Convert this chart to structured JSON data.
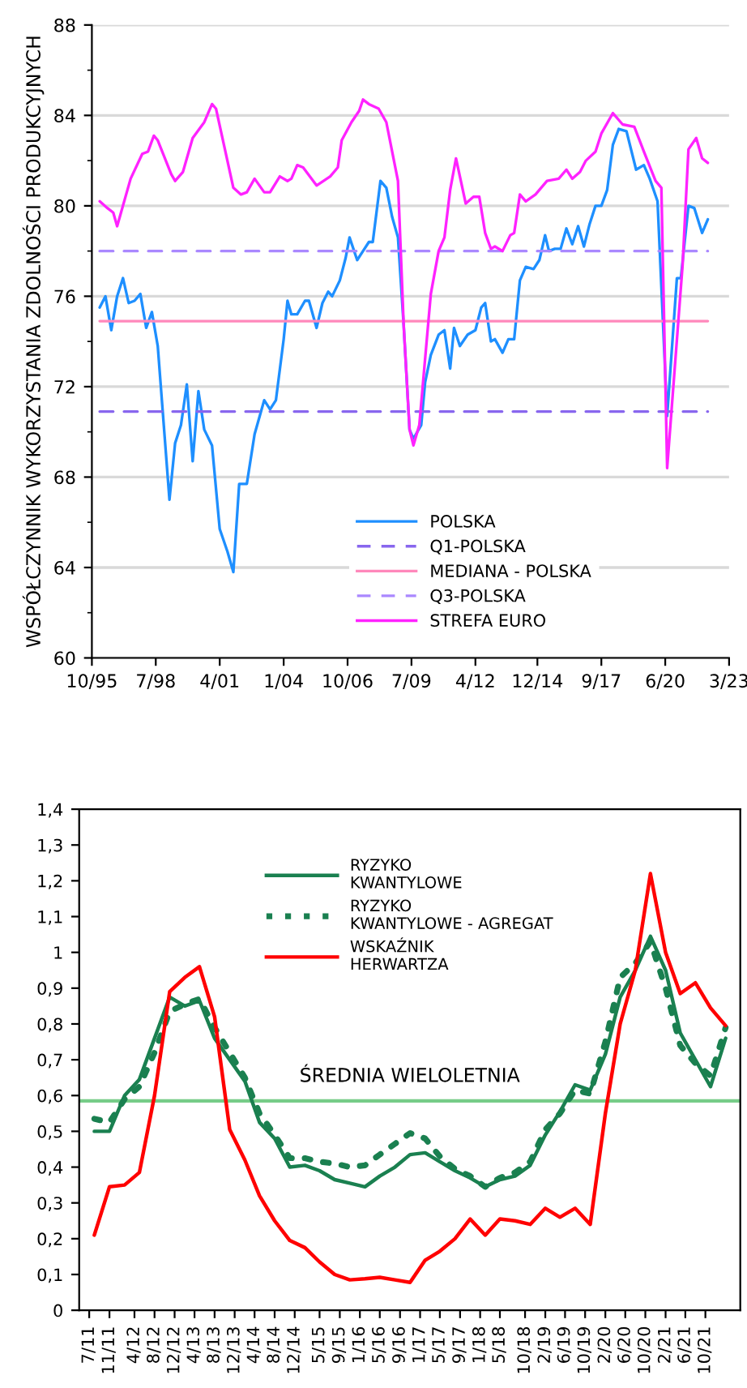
{
  "chart_data": [
    {
      "type": "line",
      "ylabel": "WSPÓŁCZYNNIK WYKORZYSTANIA ZDOLNOŚCI PRODUKCYJNYCH",
      "xlim": [
        "1995-10",
        "2023-03"
      ],
      "ylim": [
        60,
        88
      ],
      "xticks": [
        {
          "value": "1995-10",
          "label": "10/95"
        },
        {
          "value": "1998-07",
          "label": "7/98"
        },
        {
          "value": "2001-04",
          "label": "4/01"
        },
        {
          "value": "2004-01",
          "label": "1/04"
        },
        {
          "value": "2006-10",
          "label": "10/06"
        },
        {
          "value": "2009-07",
          "label": "7/09"
        },
        {
          "value": "2012-04",
          "label": "4/12"
        },
        {
          "value": "2014-12",
          "label": "12/14"
        },
        {
          "value": "2017-09",
          "label": "9/17"
        },
        {
          "value": "2020-06",
          "label": "6/20"
        },
        {
          "value": "2023-03",
          "label": "3/23"
        }
      ],
      "yticks": [
        60,
        {
          "value": 62,
          "label": null
        },
        64,
        {
          "value": 66,
          "label": null
        },
        68,
        {
          "value": 70,
          "label": null
        },
        72,
        {
          "value": 74,
          "label": null
        },
        76,
        {
          "value": 78,
          "label": null
        },
        80,
        {
          "value": 82,
          "label": null
        },
        84,
        {
          "value": 86,
          "label": null
        },
        88
      ],
      "grid": "y",
      "legend": "bottom",
      "marker": "none",
      "series": [
        {
          "name": "POLSKA",
          "color": "#1e8fff",
          "line_style": "solid",
          "x": [
            "1996-02",
            "1996-05",
            "1996-08",
            "1996-11",
            "1997-02",
            "1997-05",
            "1997-08",
            "1997-11",
            "1998-02",
            "1998-05",
            "1998-08",
            "1999-02",
            "1999-05",
            "1999-08",
            "1999-11",
            "2000-02",
            "2000-05",
            "2000-08",
            "2000-12",
            "2001-04",
            "2001-08",
            "2001-11",
            "2002-02",
            "2002-06",
            "2002-10",
            "2003-03",
            "2003-06",
            "2003-09",
            "2004-01",
            "2004-03",
            "2004-05",
            "2004-08",
            "2004-12",
            "2005-02",
            "2005-06",
            "2005-09",
            "2005-12",
            "2006-02",
            "2006-06",
            "2006-09",
            "2006-11",
            "2007-03",
            "2007-06",
            "2007-09",
            "2007-11",
            "2008-03",
            "2008-06",
            "2008-09",
            "2008-12",
            "2009-03",
            "2009-06",
            "2009-08",
            "2009-12",
            "2010-02",
            "2010-05",
            "2010-09",
            "2010-12",
            "2011-03",
            "2011-05",
            "2011-08",
            "2011-12",
            "2012-04",
            "2012-07",
            "2012-09",
            "2012-12",
            "2013-02",
            "2013-06",
            "2013-09",
            "2013-12",
            "2014-03",
            "2014-06",
            "2014-10",
            "2015-01",
            "2015-04",
            "2015-06",
            "2015-09",
            "2015-12",
            "2016-03",
            "2016-06",
            "2016-09",
            "2016-12",
            "2017-03",
            "2017-06",
            "2017-09",
            "2017-12",
            "2018-03",
            "2018-06",
            "2018-10",
            "2019-03",
            "2019-07",
            "2019-10",
            "2020-02",
            "2020-07",
            "2020-12",
            "2021-02",
            "2021-06",
            "2021-09",
            "2022-01",
            "2022-04"
          ],
          "values": [
            75.5,
            76.0,
            74.5,
            76.0,
            76.8,
            75.7,
            75.8,
            76.1,
            74.6,
            75.3,
            73.8,
            67.0,
            69.5,
            70.3,
            72.1,
            68.7,
            71.8,
            70.1,
            69.4,
            65.7,
            64.7,
            63.8,
            67.7,
            67.7,
            69.9,
            71.4,
            71.0,
            71.4,
            74.1,
            75.8,
            75.2,
            75.2,
            75.8,
            75.8,
            74.6,
            75.7,
            76.2,
            76.0,
            76.7,
            77.7,
            78.6,
            77.6,
            78.0,
            78.4,
            78.4,
            81.1,
            80.8,
            79.5,
            78.6,
            74.7,
            70.1,
            69.7,
            70.3,
            72.2,
            73.4,
            74.3,
            74.5,
            72.8,
            74.6,
            73.8,
            74.3,
            74.5,
            75.5,
            75.7,
            74.0,
            74.1,
            73.5,
            74.1,
            74.1,
            76.7,
            77.3,
            77.2,
            77.6,
            78.7,
            78.0,
            78.1,
            78.1,
            79.0,
            78.3,
            79.1,
            78.2,
            79.2,
            80.0,
            80.0,
            80.7,
            82.7,
            83.4,
            83.3,
            81.6,
            81.8,
            81.2,
            80.2,
            70.7,
            76.8,
            76.8,
            80.0,
            79.9,
            78.8,
            79.4
          ]
        },
        {
          "name": "Q1-POLSKA",
          "color": "#8866ee",
          "line_style": "dashed",
          "x": [
            "1996-02",
            "2022-04"
          ],
          "values": [
            70.9,
            70.9
          ]
        },
        {
          "name": "MEDIANA - POLSKA",
          "color": "#ff88bb",
          "line_style": "solid",
          "x": [
            "1996-02",
            "2022-04"
          ],
          "values": [
            74.9,
            74.9
          ]
        },
        {
          "name": "Q3-POLSKA",
          "color": "#aa88ff",
          "line_style": "dashed",
          "x": [
            "1996-02",
            "2022-04"
          ],
          "values": [
            78.0,
            78.0
          ]
        },
        {
          "name": "STREFA EURO",
          "color": "#ff22ff",
          "line_style": "solid",
          "x": [
            "1996-02",
            "1996-06",
            "1996-09",
            "1996-11",
            "1997-06",
            "1997-12",
            "1998-03",
            "1998-06",
            "1998-08",
            "1999-03",
            "1999-05",
            "1999-09",
            "2000-02",
            "2000-08",
            "2000-12",
            "2001-02",
            "2001-11",
            "2002-03",
            "2002-06",
            "2002-10",
            "2003-03",
            "2003-06",
            "2003-11",
            "2004-03",
            "2004-05",
            "2004-08",
            "2004-11",
            "2005-06",
            "2006-01",
            "2006-05",
            "2006-07",
            "2006-12",
            "2007-04",
            "2007-06",
            "2007-09",
            "2008-02",
            "2008-06",
            "2008-12",
            "2009-03",
            "2009-06",
            "2009-08",
            "2009-11",
            "2010-05",
            "2010-09",
            "2010-12",
            "2011-03",
            "2011-06",
            "2011-11",
            "2012-03",
            "2012-06",
            "2012-09",
            "2012-12",
            "2013-02",
            "2013-06",
            "2013-10",
            "2013-12",
            "2014-03",
            "2014-06",
            "2014-11",
            "2015-05",
            "2015-11",
            "2016-03",
            "2016-06",
            "2016-10",
            "2017-01",
            "2017-06",
            "2017-09",
            "2018-03",
            "2018-08",
            "2019-02",
            "2019-07",
            "2020-01",
            "2020-04",
            "2020-07",
            "2021-03",
            "2021-06",
            "2021-10",
            "2022-01",
            "2022-04"
          ],
          "values": [
            80.2,
            79.9,
            79.7,
            79.1,
            81.2,
            82.3,
            82.4,
            83.1,
            82.9,
            81.4,
            81.1,
            81.5,
            83.0,
            83.7,
            84.5,
            84.3,
            80.8,
            80.5,
            80.6,
            81.2,
            80.6,
            80.6,
            81.3,
            81.1,
            81.2,
            81.8,
            81.7,
            80.9,
            81.3,
            81.7,
            82.9,
            83.7,
            84.2,
            84.7,
            84.5,
            84.3,
            83.7,
            81.1,
            74.7,
            70.1,
            69.4,
            70.3,
            76.1,
            78.0,
            78.6,
            80.7,
            82.1,
            80.1,
            80.4,
            80.4,
            78.8,
            78.1,
            78.2,
            78.0,
            78.7,
            78.8,
            80.5,
            80.2,
            80.5,
            81.1,
            81.2,
            81.6,
            81.2,
            81.5,
            82.0,
            82.4,
            83.2,
            84.1,
            83.6,
            83.5,
            82.4,
            81.1,
            80.8,
            68.4,
            77.4,
            82.5,
            83.0,
            82.1,
            81.9
          ]
        }
      ]
    },
    {
      "type": "line",
      "xlim": [
        "2011-05",
        "2022-05"
      ],
      "ylim": [
        0,
        1.4
      ],
      "xticks": [
        {
          "value": "2011-07",
          "label": "7/11"
        },
        {
          "value": "2011-11",
          "label": "11/11"
        },
        {
          "value": "2012-04",
          "label": "4/12"
        },
        {
          "value": "2012-08",
          "label": "8/12"
        },
        {
          "value": "2012-12",
          "label": "12/12"
        },
        {
          "value": "2013-04",
          "label": "4/13"
        },
        {
          "value": "2013-08",
          "label": "8/13"
        },
        {
          "value": "2013-12",
          "label": "12/13"
        },
        {
          "value": "2014-04",
          "label": "4/14"
        },
        {
          "value": "2014-08",
          "label": "8/14"
        },
        {
          "value": "2014-12",
          "label": "12/14"
        },
        {
          "value": "2015-05",
          "label": "5/15"
        },
        {
          "value": "2015-09",
          "label": "9/15"
        },
        {
          "value": "2016-01",
          "label": "1/16"
        },
        {
          "value": "2016-05",
          "label": "5/16"
        },
        {
          "value": "2016-09",
          "label": "9/16"
        },
        {
          "value": "2017-01",
          "label": "1/17"
        },
        {
          "value": "2017-05",
          "label": "5/17"
        },
        {
          "value": "2017-09",
          "label": "9/17"
        },
        {
          "value": "2018-01",
          "label": "1/18"
        },
        {
          "value": "2018-05",
          "label": "5/18"
        },
        {
          "value": "2018-10",
          "label": "10/18"
        },
        {
          "value": "2019-02",
          "label": "2/19"
        },
        {
          "value": "2019-06",
          "label": "6/19"
        },
        {
          "value": "2019-10",
          "label": "10/19"
        },
        {
          "value": "2020-02",
          "label": "2/20"
        },
        {
          "value": "2020-06",
          "label": "6/20"
        },
        {
          "value": "2020-10",
          "label": "10/20"
        },
        {
          "value": "2021-02",
          "label": "2/21"
        },
        {
          "value": "2021-06",
          "label": "6/21"
        },
        {
          "value": "2021-10",
          "label": "10/21"
        }
      ],
      "yticks": [
        {
          "value": 0,
          "label": "0"
        },
        {
          "value": 0.1,
          "label": "0,1"
        },
        {
          "value": 0.2,
          "label": "0,2"
        },
        {
          "value": 0.3,
          "label": "0,3"
        },
        {
          "value": 0.4,
          "label": "0,4"
        },
        {
          "value": 0.5,
          "label": "0,5"
        },
        {
          "value": 0.6,
          "label": "0,6"
        },
        {
          "value": 0.7,
          "label": "0,7"
        },
        {
          "value": 0.8,
          "label": "0,8"
        },
        {
          "value": 0.9,
          "label": "0,9"
        },
        {
          "value": 1,
          "label": "1"
        },
        {
          "value": 1.1,
          "label": "1,1"
        },
        {
          "value": 1.2,
          "label": "1,2"
        },
        {
          "value": 1.3,
          "label": "1,3"
        },
        {
          "value": 1.4,
          "label": "1,4"
        }
      ],
      "grid": false,
      "legend": "top",
      "marker": "none",
      "x": [
        "2011-08",
        "2011-11",
        "2012-02",
        "2012-05",
        "2012-08",
        "2012-11",
        "2013-02",
        "2013-05",
        "2013-08",
        "2013-11",
        "2014-02",
        "2014-05",
        "2014-08",
        "2014-11",
        "2015-02",
        "2015-05",
        "2015-08",
        "2015-11",
        "2016-02",
        "2016-05",
        "2016-08",
        "2016-11",
        "2017-02",
        "2017-05",
        "2017-08",
        "2017-11",
        "2018-02",
        "2018-05",
        "2018-08",
        "2018-11",
        "2019-02",
        "2019-05",
        "2019-08",
        "2019-11",
        "2020-02",
        "2020-05",
        "2020-08",
        "2020-11",
        "2021-02",
        "2021-05",
        "2021-08",
        "2021-11",
        "2022-02"
      ],
      "ref_lines": [
        {
          "axis": "y",
          "value": 0.585,
          "label": "ŚREDNIA WIELOLETNIA",
          "color": "#77cc88"
        }
      ],
      "series": [
        {
          "name": "RYZYKO\nKWANTYLOWE",
          "color": "#1a8050",
          "line_style": "solid",
          "values": [
            0.5,
            0.5,
            0.6,
            0.645,
            0.76,
            0.875,
            0.85,
            0.865,
            0.76,
            0.7,
            0.64,
            0.525,
            0.48,
            0.4,
            0.405,
            0.39,
            0.365,
            0.355,
            0.345,
            0.375,
            0.4,
            0.435,
            0.44,
            0.415,
            0.39,
            0.37,
            0.345,
            0.365,
            0.375,
            0.405,
            0.49,
            0.555,
            0.63,
            0.615,
            0.715,
            0.875,
            0.95,
            1.045,
            0.95,
            0.775,
            0.7,
            0.625,
            0.76
          ]
        },
        {
          "name": "RYZYKO\nKWANTYLOWE - AGREGAT",
          "color": "#1a8050",
          "line_style": "dotted",
          "values": [
            0.535,
            0.525,
            0.59,
            0.625,
            0.72,
            0.835,
            0.855,
            0.87,
            0.79,
            0.72,
            0.65,
            0.55,
            0.49,
            0.425,
            0.425,
            0.415,
            0.41,
            0.4,
            0.405,
            0.435,
            0.465,
            0.495,
            0.48,
            0.43,
            0.395,
            0.375,
            0.345,
            0.37,
            0.385,
            0.415,
            0.505,
            0.55,
            0.615,
            0.605,
            0.75,
            0.93,
            0.97,
            1.03,
            0.9,
            0.74,
            0.69,
            0.655,
            0.79
          ]
        },
        {
          "name": "WSKAŹNIK\nHERWARTZA",
          "color": "#ff0000",
          "line_style": "solid",
          "values": [
            0.21,
            0.345,
            0.35,
            0.385,
            0.6,
            0.89,
            0.93,
            0.96,
            0.82,
            0.505,
            0.42,
            0.32,
            0.25,
            0.195,
            0.175,
            0.135,
            0.1,
            0.085,
            0.088,
            0.092,
            0.085,
            0.078,
            0.14,
            0.165,
            0.2,
            0.255,
            0.21,
            0.255,
            0.25,
            0.24,
            0.285,
            0.26,
            0.285,
            0.24,
            0.55,
            0.8,
            0.95,
            1.22,
            1.0,
            0.885,
            0.915,
            0.845,
            0.795
          ]
        }
      ]
    }
  ]
}
